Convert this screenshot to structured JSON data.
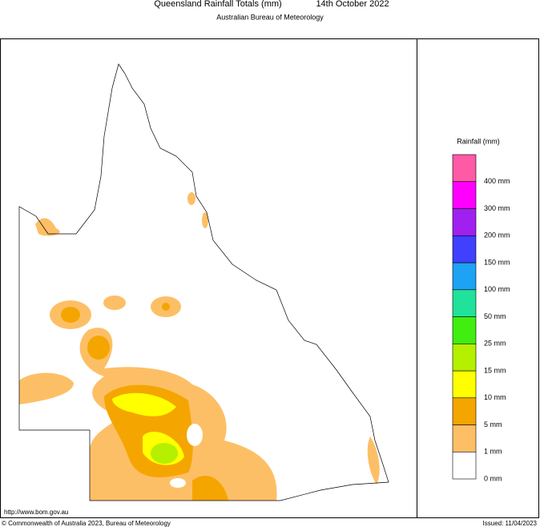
{
  "header": {
    "title": "Queensland Rainfall Totals (mm)",
    "date": "14th October 2022",
    "subtitle": "Australian Bureau of Meteorology"
  },
  "legend": {
    "title": "Rainfall (mm)",
    "colors": [
      "#ffffff",
      "#fdbf66",
      "#f5a500",
      "#ffff00",
      "#b4f000",
      "#40ee10",
      "#20e29a",
      "#1ea2f4",
      "#4040ff",
      "#a020f0",
      "#ff00ff",
      "#ff5aa5"
    ],
    "labels": [
      "0 mm",
      "1 mm",
      "5 mm",
      "10 mm",
      "15 mm",
      "25 mm",
      "50 mm",
      "100 mm",
      "150 mm",
      "200 mm",
      "300 mm",
      "400 mm"
    ]
  },
  "footer": {
    "url": "http://www.bom.gov.au",
    "copyright": "© Commonwealth of Australia 2023, Bureau of Meteorology",
    "issued": "Issued: 11/04/2023"
  }
}
